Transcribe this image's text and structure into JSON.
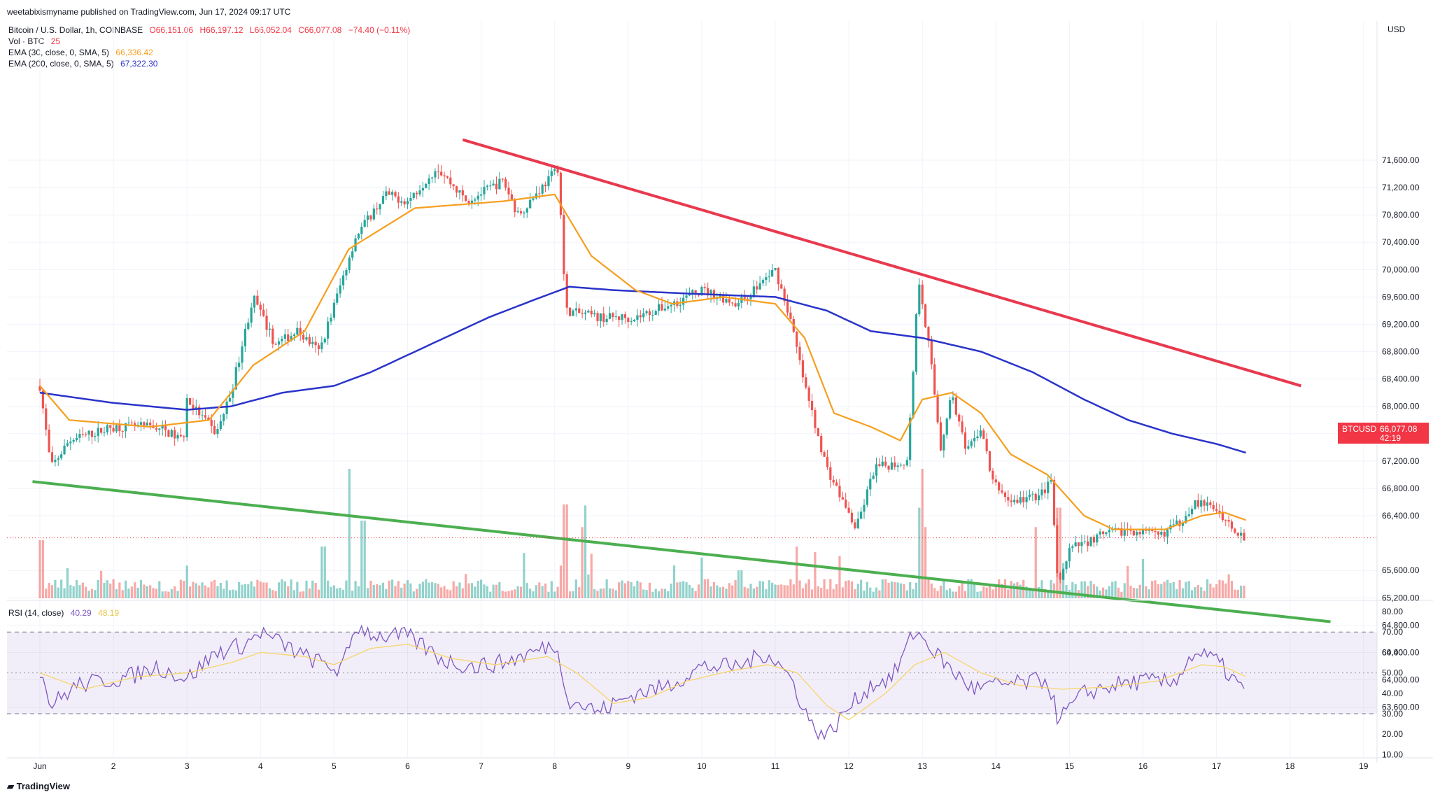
{
  "published_line": "weetabixismyname published on TradingView.com, Jun 17, 2024 09:17 UTC",
  "symbol_line": "Bitcoin / U.S. Dollar, 1h, COINBASE",
  "ohlc": {
    "o": "O66,151.06",
    "h": "H66,197.12",
    "l": "L66,052.04",
    "c": "C66,077.08",
    "chg": "−74.40 (−0.11%)"
  },
  "vol_label": "Vol · BTC",
  "vol_value": "25",
  "ema30_label": "EMA (30, close, 0, SMA, 5)",
  "ema30_value": "66,336.42",
  "ema200_label": "EMA (200, close, 0, SMA, 5)",
  "ema200_value": "67,322.30",
  "rsi_label": "RSI (14, close)",
  "rsi_value": "40.29",
  "rsi_ma_value": "48.19",
  "currency": "USD",
  "last_price": {
    "symbol": "BTCUSD",
    "value": "66,077.08",
    "countdown": "42:19"
  },
  "footer_brand": "TradingView",
  "colors": {
    "up": "#26a69a",
    "down": "#ef5350",
    "ema30": "#f59f1f",
    "ema200": "#2a34c9",
    "resistance": "#e8394f",
    "support": "#4caf50",
    "rsi": "#7e57c2",
    "rsi_ma": "#f7d56b"
  },
  "chart_data": {
    "type": "candlestick",
    "title": "Bitcoin / U.S. Dollar, 1h, COINBASE",
    "y_axis": {
      "ticks": [
        71600,
        71200,
        70800,
        70400,
        70000,
        69600,
        69200,
        68800,
        68400,
        68000,
        67600,
        67200,
        66800,
        66400,
        65600,
        65200,
        64800,
        64400,
        64000,
        63600
      ],
      "currency": "USD"
    },
    "x_axis": {
      "labels": [
        "Jun",
        "2",
        "3",
        "4",
        "5",
        "6",
        "7",
        "8",
        "9",
        "10",
        "11",
        "12",
        "13",
        "14",
        "15",
        "16",
        "17",
        "18",
        "19"
      ]
    },
    "price_anchors": [
      {
        "d": 0.0,
        "p": 68300
      },
      {
        "d": 0.15,
        "p": 67100
      },
      {
        "d": 0.4,
        "p": 67500
      },
      {
        "d": 1.0,
        "p": 67700
      },
      {
        "d": 1.6,
        "p": 67700
      },
      {
        "d": 1.95,
        "p": 67500
      },
      {
        "d": 2.0,
        "p": 68100
      },
      {
        "d": 2.4,
        "p": 67600
      },
      {
        "d": 2.6,
        "p": 68200
      },
      {
        "d": 2.9,
        "p": 69600
      },
      {
        "d": 3.2,
        "p": 68900
      },
      {
        "d": 3.5,
        "p": 69100
      },
      {
        "d": 3.8,
        "p": 68800
      },
      {
        "d": 4.3,
        "p": 70500
      },
      {
        "d": 4.7,
        "p": 71100
      },
      {
        "d": 5.0,
        "p": 71000
      },
      {
        "d": 5.4,
        "p": 71500
      },
      {
        "d": 5.8,
        "p": 71000
      },
      {
        "d": 6.3,
        "p": 71300
      },
      {
        "d": 6.5,
        "p": 70800
      },
      {
        "d": 6.9,
        "p": 71300
      },
      {
        "d": 7.05,
        "p": 71500
      },
      {
        "d": 7.15,
        "p": 69400
      },
      {
        "d": 7.6,
        "p": 69300
      },
      {
        "d": 8.1,
        "p": 69300
      },
      {
        "d": 8.6,
        "p": 69500
      },
      {
        "d": 9.0,
        "p": 69700
      },
      {
        "d": 9.5,
        "p": 69500
      },
      {
        "d": 10.0,
        "p": 70000
      },
      {
        "d": 10.2,
        "p": 69300
      },
      {
        "d": 10.4,
        "p": 68300
      },
      {
        "d": 10.7,
        "p": 67100
      },
      {
        "d": 11.1,
        "p": 66200
      },
      {
        "d": 11.35,
        "p": 67100
      },
      {
        "d": 11.8,
        "p": 67200
      },
      {
        "d": 11.95,
        "p": 69900
      },
      {
        "d": 12.1,
        "p": 68800
      },
      {
        "d": 12.25,
        "p": 67400
      },
      {
        "d": 12.4,
        "p": 68200
      },
      {
        "d": 12.6,
        "p": 67300
      },
      {
        "d": 12.8,
        "p": 67700
      },
      {
        "d": 12.95,
        "p": 66900
      },
      {
        "d": 13.2,
        "p": 66600
      },
      {
        "d": 13.6,
        "p": 66700
      },
      {
        "d": 13.75,
        "p": 66900
      },
      {
        "d": 13.85,
        "p": 65300
      },
      {
        "d": 14.0,
        "p": 65900
      },
      {
        "d": 14.4,
        "p": 66100
      },
      {
        "d": 14.8,
        "p": 66200
      },
      {
        "d": 15.2,
        "p": 66100
      },
      {
        "d": 15.5,
        "p": 66300
      },
      {
        "d": 15.7,
        "p": 66600
      },
      {
        "d": 16.0,
        "p": 66500
      },
      {
        "d": 16.2,
        "p": 66250
      },
      {
        "d": 16.4,
        "p": 66077
      }
    ],
    "ema30_anchors": [
      {
        "d": 0.0,
        "p": 68300
      },
      {
        "d": 0.4,
        "p": 67800
      },
      {
        "d": 1.5,
        "p": 67700
      },
      {
        "d": 2.3,
        "p": 67800
      },
      {
        "d": 2.9,
        "p": 68600
      },
      {
        "d": 3.6,
        "p": 69100
      },
      {
        "d": 4.2,
        "p": 70300
      },
      {
        "d": 5.1,
        "p": 70900
      },
      {
        "d": 6.3,
        "p": 71000
      },
      {
        "d": 7.0,
        "p": 71100
      },
      {
        "d": 7.5,
        "p": 70200
      },
      {
        "d": 8.1,
        "p": 69700
      },
      {
        "d": 8.6,
        "p": 69500
      },
      {
        "d": 9.3,
        "p": 69600
      },
      {
        "d": 10.0,
        "p": 69500
      },
      {
        "d": 10.4,
        "p": 69000
      },
      {
        "d": 10.8,
        "p": 67900
      },
      {
        "d": 11.3,
        "p": 67700
      },
      {
        "d": 11.7,
        "p": 67500
      },
      {
        "d": 12.0,
        "p": 68100
      },
      {
        "d": 12.4,
        "p": 68200
      },
      {
        "d": 12.8,
        "p": 67900
      },
      {
        "d": 13.2,
        "p": 67300
      },
      {
        "d": 13.7,
        "p": 67000
      },
      {
        "d": 14.2,
        "p": 66400
      },
      {
        "d": 14.6,
        "p": 66200
      },
      {
        "d": 15.3,
        "p": 66200
      },
      {
        "d": 15.8,
        "p": 66400
      },
      {
        "d": 16.1,
        "p": 66450
      },
      {
        "d": 16.4,
        "p": 66336
      }
    ],
    "ema200_anchors": [
      {
        "d": 0.0,
        "p": 68200
      },
      {
        "d": 1.0,
        "p": 68050
      },
      {
        "d": 2.0,
        "p": 67950
      },
      {
        "d": 2.6,
        "p": 68000
      },
      {
        "d": 3.3,
        "p": 68200
      },
      {
        "d": 4.0,
        "p": 68300
      },
      {
        "d": 4.5,
        "p": 68500
      },
      {
        "d": 5.3,
        "p": 68900
      },
      {
        "d": 6.1,
        "p": 69300
      },
      {
        "d": 6.7,
        "p": 69550
      },
      {
        "d": 7.2,
        "p": 69750
      },
      {
        "d": 7.8,
        "p": 69700
      },
      {
        "d": 8.8,
        "p": 69650
      },
      {
        "d": 10.0,
        "p": 69600
      },
      {
        "d": 10.7,
        "p": 69400
      },
      {
        "d": 11.3,
        "p": 69100
      },
      {
        "d": 12.0,
        "p": 69000
      },
      {
        "d": 12.8,
        "p": 68800
      },
      {
        "d": 13.5,
        "p": 68500
      },
      {
        "d": 14.2,
        "p": 68100
      },
      {
        "d": 14.8,
        "p": 67800
      },
      {
        "d": 15.4,
        "p": 67600
      },
      {
        "d": 16.0,
        "p": 67450
      },
      {
        "d": 16.4,
        "p": 67322
      }
    ],
    "trendlines": [
      {
        "name": "",
        "from": {
          "d": 5.75,
          "p": 71900
        },
        "to": {
          "d": 17.15,
          "p": 68300
        }
      },
      {
        "name": "",
        "from": {
          "d": -0.1,
          "p": 66900
        },
        "to": {
          "d": 17.55,
          "p": 64850
        }
      }
    ],
    "volume_scale_max": 2.0,
    "volume_spikes": [
      {
        "d": 0.02,
        "v": 0.9
      },
      {
        "d": 3.85,
        "v": 0.8
      },
      {
        "d": 4.2,
        "v": 2.0
      },
      {
        "d": 4.4,
        "v": 1.2
      },
      {
        "d": 7.15,
        "v": 1.45
      },
      {
        "d": 7.4,
        "v": 1.1
      },
      {
        "d": 10.3,
        "v": 0.8
      },
      {
        "d": 11.95,
        "v": 1.4
      },
      {
        "d": 12.0,
        "v": 2.0
      },
      {
        "d": 12.05,
        "v": 1.1
      },
      {
        "d": 13.55,
        "v": 1.1
      },
      {
        "d": 13.85,
        "v": 1.4
      }
    ],
    "rsi_axis": {
      "ticks": [
        80,
        70,
        60,
        50,
        40,
        30,
        20,
        10
      ],
      "bands": [
        30,
        70
      ],
      "mid": 50
    },
    "rsi_anchors": [
      {
        "d": 0.0,
        "v": 52
      },
      {
        "d": 0.15,
        "v": 34
      },
      {
        "d": 0.5,
        "v": 44
      },
      {
        "d": 1.2,
        "v": 48
      },
      {
        "d": 1.6,
        "v": 53
      },
      {
        "d": 2.0,
        "v": 47
      },
      {
        "d": 2.4,
        "v": 60
      },
      {
        "d": 2.8,
        "v": 64
      },
      {
        "d": 3.0,
        "v": 70
      },
      {
        "d": 3.3,
        "v": 64
      },
      {
        "d": 3.6,
        "v": 58
      },
      {
        "d": 4.1,
        "v": 51
      },
      {
        "d": 4.3,
        "v": 73
      },
      {
        "d": 4.6,
        "v": 68
      },
      {
        "d": 5.0,
        "v": 68
      },
      {
        "d": 5.5,
        "v": 56
      },
      {
        "d": 5.9,
        "v": 53
      },
      {
        "d": 6.3,
        "v": 55
      },
      {
        "d": 6.7,
        "v": 60
      },
      {
        "d": 7.0,
        "v": 64
      },
      {
        "d": 7.2,
        "v": 37
      },
      {
        "d": 7.6,
        "v": 31
      },
      {
        "d": 8.1,
        "v": 40
      },
      {
        "d": 8.5,
        "v": 43
      },
      {
        "d": 9.0,
        "v": 53
      },
      {
        "d": 9.5,
        "v": 53
      },
      {
        "d": 9.9,
        "v": 60
      },
      {
        "d": 10.2,
        "v": 48
      },
      {
        "d": 10.5,
        "v": 24
      },
      {
        "d": 10.7,
        "v": 19
      },
      {
        "d": 11.0,
        "v": 33
      },
      {
        "d": 11.3,
        "v": 44
      },
      {
        "d": 11.6,
        "v": 48
      },
      {
        "d": 11.9,
        "v": 71
      },
      {
        "d": 12.1,
        "v": 63
      },
      {
        "d": 12.4,
        "v": 51
      },
      {
        "d": 12.7,
        "v": 42
      },
      {
        "d": 13.0,
        "v": 44
      },
      {
        "d": 13.4,
        "v": 45
      },
      {
        "d": 13.7,
        "v": 47
      },
      {
        "d": 13.85,
        "v": 27
      },
      {
        "d": 14.2,
        "v": 40
      },
      {
        "d": 14.6,
        "v": 44
      },
      {
        "d": 15.0,
        "v": 46
      },
      {
        "d": 15.4,
        "v": 45
      },
      {
        "d": 15.7,
        "v": 60
      },
      {
        "d": 16.0,
        "v": 56
      },
      {
        "d": 16.2,
        "v": 48
      },
      {
        "d": 16.4,
        "v": 40.29
      }
    ],
    "rsi_ma_anchors": [
      {
        "d": 0.0,
        "v": 50
      },
      {
        "d": 0.6,
        "v": 42
      },
      {
        "d": 1.3,
        "v": 48
      },
      {
        "d": 2.0,
        "v": 50
      },
      {
        "d": 2.6,
        "v": 55
      },
      {
        "d": 3.0,
        "v": 60
      },
      {
        "d": 3.6,
        "v": 58
      },
      {
        "d": 4.0,
        "v": 54
      },
      {
        "d": 4.5,
        "v": 62
      },
      {
        "d": 5.0,
        "v": 64
      },
      {
        "d": 5.6,
        "v": 57
      },
      {
        "d": 6.2,
        "v": 54
      },
      {
        "d": 6.9,
        "v": 58
      },
      {
        "d": 7.3,
        "v": 50
      },
      {
        "d": 7.8,
        "v": 35
      },
      {
        "d": 8.3,
        "v": 38
      },
      {
        "d": 8.8,
        "v": 46
      },
      {
        "d": 9.4,
        "v": 51
      },
      {
        "d": 9.9,
        "v": 54
      },
      {
        "d": 10.3,
        "v": 50
      },
      {
        "d": 10.7,
        "v": 34
      },
      {
        "d": 11.0,
        "v": 27
      },
      {
        "d": 11.5,
        "v": 40
      },
      {
        "d": 11.9,
        "v": 54
      },
      {
        "d": 12.3,
        "v": 60
      },
      {
        "d": 12.8,
        "v": 50
      },
      {
        "d": 13.3,
        "v": 44
      },
      {
        "d": 13.9,
        "v": 42
      },
      {
        "d": 14.5,
        "v": 43
      },
      {
        "d": 15.2,
        "v": 46
      },
      {
        "d": 15.8,
        "v": 54
      },
      {
        "d": 16.1,
        "v": 53
      },
      {
        "d": 16.4,
        "v": 48.19
      }
    ]
  }
}
